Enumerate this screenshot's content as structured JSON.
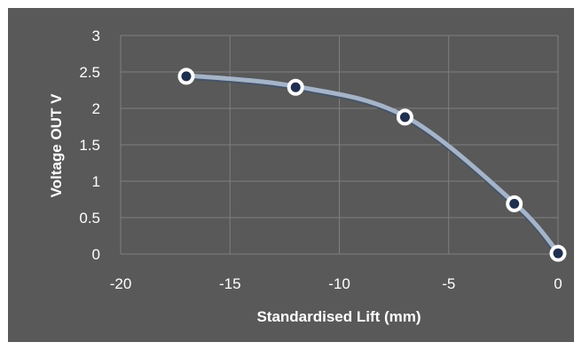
{
  "chart_data": {
    "type": "scatter",
    "title": "",
    "xlabel": "Standardised Lift (mm)",
    "ylabel": "Voltage OUT V",
    "xlim": [
      -20,
      0
    ],
    "ylim": [
      0,
      3
    ],
    "x_ticks": [
      -20,
      -15,
      -10,
      -5,
      0
    ],
    "y_ticks": [
      0,
      0.5,
      1,
      1.5,
      2,
      2.5,
      3
    ],
    "x_tick_labels": [
      "-20",
      "-15",
      "-10",
      "-5",
      "0"
    ],
    "y_tick_labels": [
      "0",
      "0.5",
      "1",
      "1.5",
      "2",
      "2.5",
      "3"
    ],
    "grid": true,
    "smooth_line": true,
    "series": [
      {
        "x": [
          -17,
          -12,
          -7,
          -2,
          0
        ],
        "y": [
          2.44,
          2.29,
          1.88,
          0.69,
          0.01
        ]
      }
    ],
    "colors": {
      "background": "#595959",
      "grid": "#7f7f7f",
      "line": "#a6b4c8",
      "line_core": "#44546a",
      "marker_fill": "#1f2f4f",
      "marker_edge": "#ffffff",
      "text": "#ffffff"
    }
  }
}
